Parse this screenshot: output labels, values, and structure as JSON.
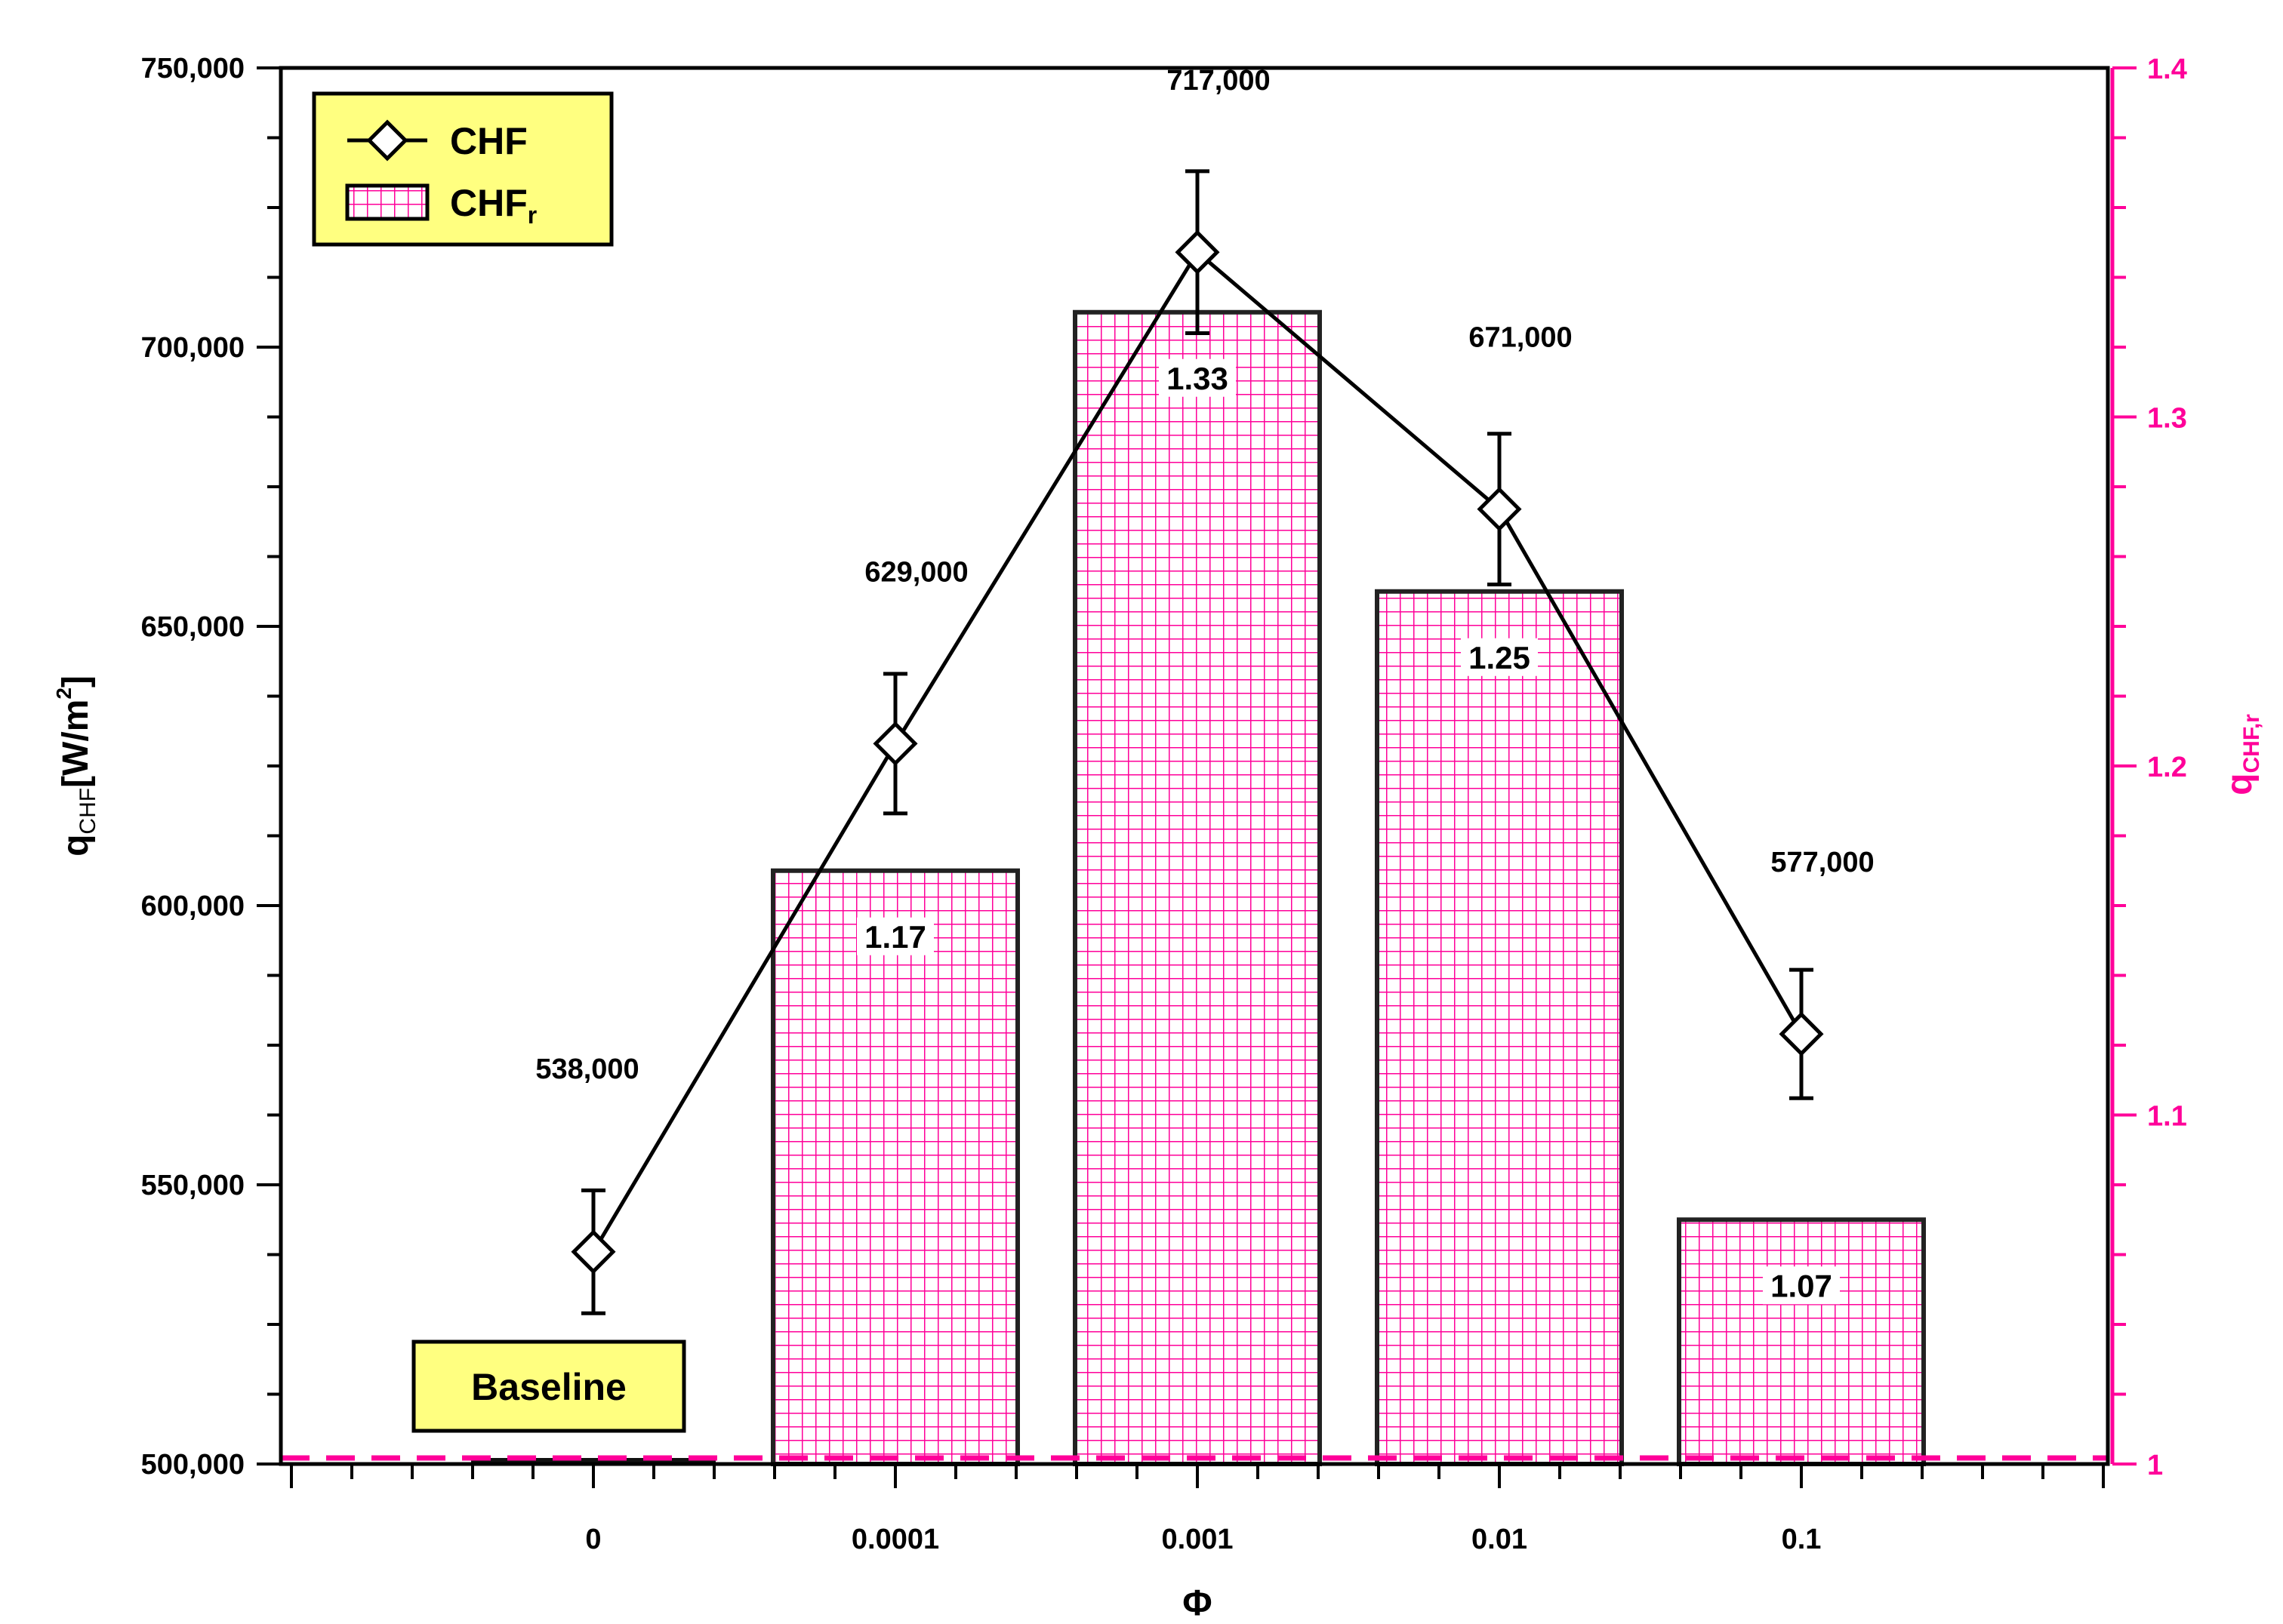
{
  "chart_data": {
    "type": "bar+line",
    "x_axis": {
      "label": "Φ",
      "categories": [
        "0",
        "0.0001",
        "0.001",
        "0.01",
        "0.1"
      ]
    },
    "y_axis_left": {
      "label_main": "q",
      "label_sub": "CHF",
      "label_unit": "[W/m",
      "label_sup": "2",
      "label_close": "]",
      "range": [
        500000,
        750000
      ],
      "ticks": [
        "500,000",
        "550,000",
        "600,000",
        "650,000",
        "700,000",
        "750,000"
      ],
      "tick_values": [
        500000,
        550000,
        600000,
        650000,
        700000,
        750000
      ],
      "minor_step": 12500
    },
    "y_axis_right": {
      "label_main": "q",
      "label_sub": "CHF,r",
      "range": [
        1.0,
        1.4
      ],
      "ticks": [
        "1",
        "1.1",
        "1.2",
        "1.3",
        "1.4"
      ],
      "tick_values": [
        1.0,
        1.1,
        1.2,
        1.3,
        1.4
      ],
      "minor_step": 0.02,
      "color": "#ff0099"
    },
    "series": [
      {
        "name": "CHF",
        "type": "line",
        "marker": "diamond",
        "axis": "left",
        "values": [
          538000,
          629000,
          717000,
          671000,
          577000
        ],
        "labels": [
          "538,000",
          "629,000",
          "717,000",
          "671,000",
          "577,000"
        ],
        "error": [
          11000,
          12500,
          14500,
          13500,
          11500
        ],
        "color": "#000000"
      },
      {
        "name": "CHF",
        "name_sub": "r",
        "type": "bar",
        "pattern": "grid",
        "axis": "right",
        "values": [
          1.0,
          1.17,
          1.33,
          1.25,
          1.07
        ],
        "labels": [
          "",
          "1.17",
          "1.33",
          "1.25",
          "1.07"
        ],
        "color": "#ff0099"
      }
    ],
    "reference_line": {
      "value": 1.0,
      "style": "dashed",
      "color": "#ff0099"
    },
    "annotation": "Baseline",
    "legend": {
      "placement": "top-left",
      "background": "#ffff80"
    },
    "grid": false
  }
}
